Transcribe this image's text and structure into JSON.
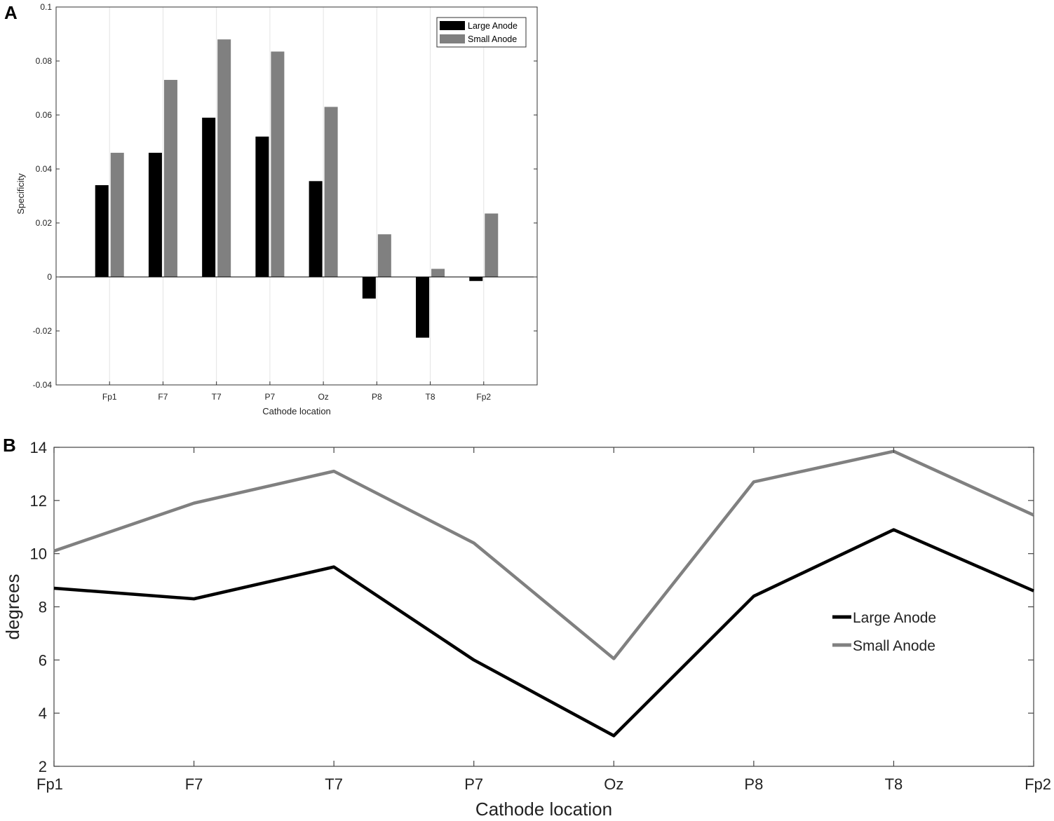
{
  "chart_data": [
    {
      "panel": "A",
      "type": "bar",
      "categories": [
        "Fp1",
        "F7",
        "T7",
        "P7",
        "Oz",
        "P8",
        "T8",
        "Fp2"
      ],
      "series": [
        {
          "name": "Large Anode",
          "color": "#000000",
          "values": [
            0.034,
            0.046,
            0.059,
            0.052,
            0.0355,
            -0.008,
            -0.0225,
            -0.0015
          ]
        },
        {
          "name": "Small Anode",
          "color": "#808080",
          "values": [
            0.046,
            0.073,
            0.088,
            0.0835,
            0.063,
            0.0158,
            0.003,
            0.0235
          ]
        }
      ],
      "xlabel": "Cathode location",
      "ylabel": "Specificity",
      "ylim": [
        -0.04,
        0.1
      ],
      "yticks": [
        -0.04,
        -0.02,
        0,
        0.02,
        0.04,
        0.06,
        0.08,
        0.1
      ],
      "ytick_labels": [
        "-0.04",
        "-0.02",
        "0",
        "0.02",
        "0.04",
        "0.06",
        "0.08",
        "0.1"
      ],
      "grid": "vertical",
      "legend_position": "top-right"
    },
    {
      "panel": "B",
      "type": "line",
      "categories": [
        "Fp1",
        "F7",
        "T7",
        "P7",
        "Oz",
        "P8",
        "T8",
        "Fp2"
      ],
      "series": [
        {
          "name": "Large Anode",
          "color": "#000000",
          "values": [
            8.7,
            8.3,
            9.5,
            6.0,
            3.15,
            8.4,
            10.9,
            8.6
          ]
        },
        {
          "name": "Small Anode",
          "color": "#808080",
          "values": [
            10.1,
            11.9,
            13.1,
            10.4,
            6.05,
            12.7,
            13.85,
            11.45
          ]
        }
      ],
      "xlabel": "Cathode location",
      "ylabel": "degrees",
      "ylim": [
        2,
        14
      ],
      "yticks": [
        2,
        4,
        6,
        8,
        10,
        12,
        14
      ],
      "ytick_labels": [
        "2",
        "4",
        "6",
        "8",
        "10",
        "12",
        "14"
      ],
      "grid": "off",
      "legend_position": "center-right"
    }
  ]
}
